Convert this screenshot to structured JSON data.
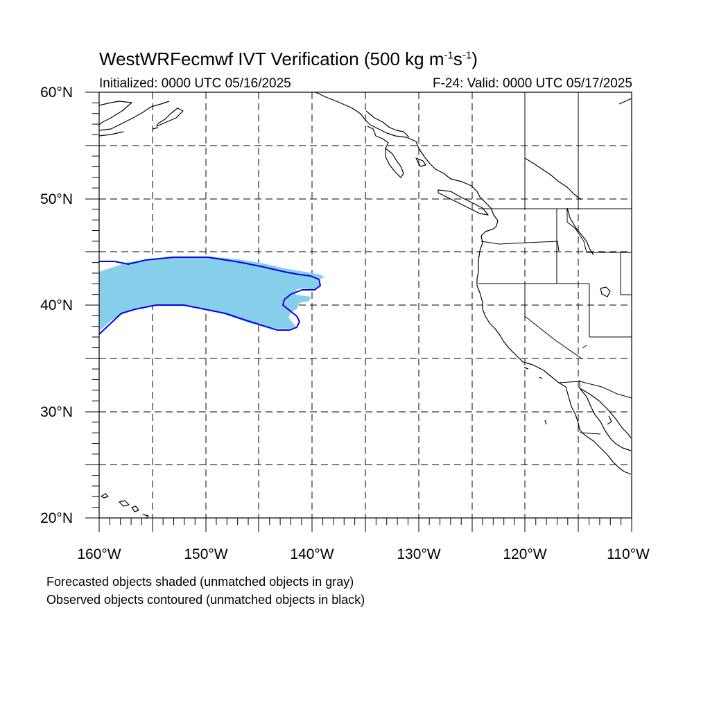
{
  "title": {
    "main": "WestWRFecmwf IVT Verification (500 kg m",
    "exp1": "-1",
    "mid": "s",
    "exp2": "-1",
    "close": ")"
  },
  "subtitle_left": "Initialized: 0000 UTC 05/16/2025",
  "subtitle_right": "F-24: Valid: 0000 UTC 05/17/2025",
  "axes": {
    "lon_labels": [
      "160°W",
      "150°W",
      "140°W",
      "130°W",
      "120°W",
      "110°W"
    ],
    "lat_labels": [
      "60°N",
      "50°N",
      "40°N",
      "30°N",
      "20°N"
    ]
  },
  "map_extent": {
    "lon_min": -160,
    "lon_max": -110,
    "lat_min": 20,
    "lat_max": 60
  },
  "colors": {
    "forecast_fill": "#87ceeb",
    "observed_contour": "#0000ee",
    "coastline": "#000000",
    "grid": "#000000"
  },
  "legend_notes": [
    "Forecasted objects shaded (unmatched objects in gray)",
    "Observed objects contoured (unmatched objects in black)"
  ]
}
